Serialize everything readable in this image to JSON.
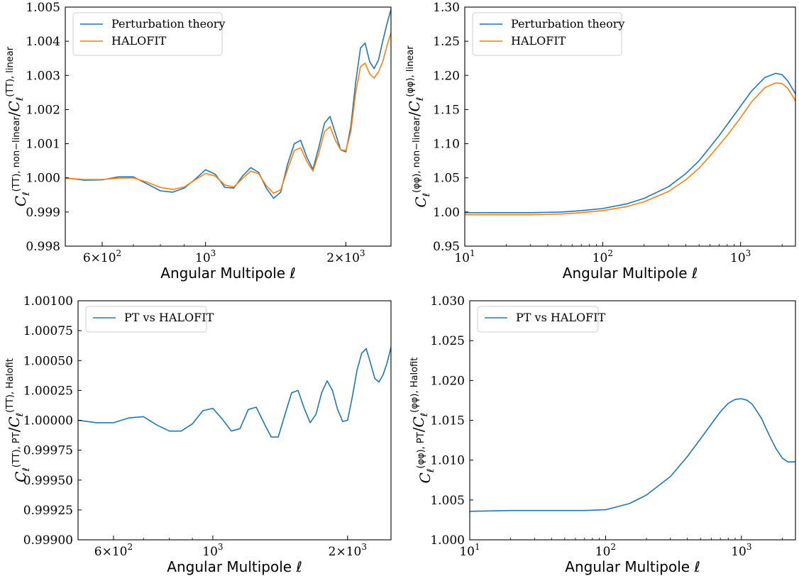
{
  "colors": {
    "blue": "#1f77b4",
    "orange": "#ff7f0e"
  },
  "chart_data": [
    {
      "type": "line",
      "xscale": "log",
      "xlim": [
        500,
        2500
      ],
      "ylim": [
        0.998,
        1.005
      ],
      "xlabel": "Angular  Multipole  ℓ",
      "ylabel": "C_ℓ^(TT), non−linear / C_ℓ^(TT), linear",
      "yticks": [
        "0.998",
        "0.999",
        "1.000",
        "1.001",
        "1.002",
        "1.003",
        "1.004",
        "1.005"
      ],
      "xticks": [
        {
          "value": 600,
          "label": "6×10²"
        },
        {
          "value": 1000,
          "label": "10³"
        },
        {
          "value": 2000,
          "label": "2×10³"
        }
      ],
      "legend_position": "top-left",
      "series": [
        {
          "name": "Perturbation theory",
          "color": "#1f77b4",
          "x": [
            500,
            550,
            600,
            650,
            700,
            750,
            800,
            850,
            900,
            950,
            1000,
            1050,
            1100,
            1150,
            1200,
            1250,
            1300,
            1350,
            1400,
            1450,
            1500,
            1550,
            1600,
            1650,
            1700,
            1750,
            1800,
            1850,
            1900,
            1950,
            2000,
            2050,
            2100,
            2150,
            2200,
            2250,
            2300,
            2350,
            2400,
            2450,
            2500
          ],
          "y": [
            1.0,
            0.99993,
            0.99994,
            1.00003,
            1.00003,
            0.99982,
            0.99962,
            0.99958,
            0.9997,
            0.99996,
            1.00024,
            1.0001,
            0.99972,
            0.9997,
            1.00005,
            1.0003,
            1.00016,
            0.9997,
            0.9994,
            0.99958,
            1.0004,
            1.001,
            1.0011,
            1.0006,
            1.00025,
            1.0009,
            1.0016,
            1.0018,
            1.0013,
            1.00082,
            1.00076,
            1.0015,
            1.0028,
            1.0038,
            1.00395,
            1.0034,
            1.0032,
            1.00345,
            1.004,
            1.0045,
            1.00493
          ]
        },
        {
          "name": "HALOFIT",
          "color": "#ff7f0e",
          "x": [
            500,
            550,
            600,
            650,
            700,
            750,
            800,
            850,
            900,
            950,
            1000,
            1050,
            1100,
            1150,
            1200,
            1250,
            1300,
            1350,
            1400,
            1450,
            1500,
            1550,
            1600,
            1650,
            1700,
            1750,
            1800,
            1850,
            1900,
            1950,
            2000,
            2050,
            2100,
            2150,
            2200,
            2250,
            2300,
            2350,
            2400,
            2450,
            2500
          ],
          "y": [
            0.99999,
            0.99995,
            0.99995,
            0.99999,
            1.0,
            0.99987,
            0.99972,
            0.99966,
            0.99973,
            0.99994,
            1.00013,
            1.00005,
            0.99979,
            0.99973,
            0.99998,
            1.0002,
            1.00012,
            0.99977,
            0.99955,
            0.99965,
            1.00025,
            1.0008,
            1.00088,
            1.00048,
            1.0002,
            1.00072,
            1.00135,
            1.0015,
            1.0011,
            1.00082,
            1.0008,
            1.00135,
            1.0025,
            1.00325,
            1.00336,
            1.00305,
            1.00292,
            1.0031,
            1.0034,
            1.00385,
            1.00425
          ]
        }
      ]
    },
    {
      "type": "line",
      "xscale": "log",
      "xlim": [
        10,
        2500
      ],
      "ylim": [
        0.95,
        1.3
      ],
      "xlabel": "Angular  Multipole  ℓ",
      "ylabel": "C_ℓ^(φφ), non−linear / C_ℓ^(φφ), linear",
      "yticks": [
        "0.95",
        "1.00",
        "1.05",
        "1.10",
        "1.15",
        "1.20",
        "1.25",
        "1.30"
      ],
      "xticks": [
        {
          "value": 10,
          "label": "10¹"
        },
        {
          "value": 100,
          "label": "10²"
        },
        {
          "value": 1000,
          "label": "10³"
        }
      ],
      "legend_position": "top-left",
      "series": [
        {
          "name": "Perturbation theory",
          "color": "#1f77b4",
          "x": [
            10,
            20,
            30,
            50,
            70,
            100,
            150,
            200,
            300,
            400,
            500,
            600,
            700,
            800,
            1000,
            1200,
            1500,
            1800,
            2000,
            2200,
            2500
          ],
          "y": [
            0.999,
            0.999,
            0.999,
            1.0,
            1.002,
            1.005,
            1.012,
            1.02,
            1.037,
            1.056,
            1.075,
            1.095,
            1.112,
            1.128,
            1.155,
            1.177,
            1.197,
            1.203,
            1.201,
            1.192,
            1.173
          ]
        },
        {
          "name": "HALOFIT",
          "color": "#ff7f0e",
          "x": [
            10,
            20,
            30,
            50,
            70,
            100,
            150,
            200,
            300,
            400,
            500,
            600,
            700,
            800,
            1000,
            1200,
            1500,
            1800,
            2000,
            2200,
            2500
          ],
          "y": [
            0.996,
            0.996,
            0.996,
            0.997,
            0.999,
            1.002,
            1.008,
            1.015,
            1.03,
            1.047,
            1.064,
            1.082,
            1.098,
            1.112,
            1.138,
            1.161,
            1.182,
            1.189,
            1.188,
            1.181,
            1.163
          ]
        }
      ]
    },
    {
      "type": "line",
      "xscale": "log",
      "xlim": [
        500,
        2500
      ],
      "ylim": [
        0.999,
        1.001
      ],
      "xlabel": "Angular  Multipole  ℓ",
      "ylabel": "C_ℓ^(TT), PT / C_ℓ^(TT), Halofit",
      "yticks": [
        "0.99900",
        "0.99925",
        "0.99950",
        "0.99975",
        "1.00000",
        "1.00025",
        "1.00050",
        "1.00075",
        "1.00100"
      ],
      "xticks": [
        {
          "value": 600,
          "label": "6×10²"
        },
        {
          "value": 1000,
          "label": "10³"
        },
        {
          "value": 2000,
          "label": "2×10³"
        }
      ],
      "legend_position": "top-left",
      "series": [
        {
          "name": "PT vs HALOFIT",
          "color": "#1f77b4",
          "x": [
            500,
            550,
            600,
            650,
            700,
            750,
            800,
            850,
            900,
            950,
            1000,
            1050,
            1100,
            1150,
            1200,
            1250,
            1300,
            1350,
            1400,
            1450,
            1500,
            1550,
            1600,
            1650,
            1700,
            1750,
            1800,
            1850,
            1900,
            1950,
            2000,
            2050,
            2100,
            2150,
            2200,
            2250,
            2300,
            2350,
            2400,
            2450,
            2500
          ],
          "y": [
            1.0,
            0.99998,
            0.99998,
            1.00002,
            1.00003,
            0.99996,
            0.99991,
            0.99991,
            0.99997,
            1.00008,
            1.0001,
            1.00001,
            0.99991,
            0.99993,
            1.00009,
            1.00011,
            0.99998,
            0.99986,
            0.99986,
            1.00005,
            1.00023,
            1.00025,
            1.0001,
            0.99998,
            1.00005,
            1.00023,
            1.00033,
            1.00025,
            1.00009,
            0.99999,
            1.0,
            1.0002,
            1.00042,
            1.00056,
            1.0006,
            1.00048,
            1.00035,
            1.00032,
            1.00038,
            1.00048,
            1.00061
          ]
        }
      ]
    },
    {
      "type": "line",
      "xscale": "log",
      "xlim": [
        10,
        2500
      ],
      "ylim": [
        0.999,
        1.03
      ],
      "xlabel": "Angular  Multipole  ℓ",
      "ylabel": "C_ℓ^(φφ), PT / C_ℓ^(φφ), Halofit",
      "yticks": [
        "1.000",
        "1.005",
        "1.010",
        "1.015",
        "1.020",
        "1.025",
        "1.030"
      ],
      "xticks": [
        {
          "value": 10,
          "label": "10¹"
        },
        {
          "value": 100,
          "label": "10²"
        },
        {
          "value": 1000,
          "label": "10³"
        }
      ],
      "legend_position": "top-left",
      "series": [
        {
          "name": "PT vs HALOFIT",
          "color": "#1f77b4",
          "x": [
            10,
            20,
            30,
            50,
            70,
            100,
            150,
            200,
            300,
            400,
            500,
            600,
            700,
            800,
            900,
            1000,
            1100,
            1200,
            1400,
            1600,
            1800,
            2000,
            2200,
            2500
          ],
          "y": [
            1.0027,
            1.0028,
            1.0028,
            1.0028,
            1.0028,
            1.0029,
            1.0037,
            1.0048,
            1.0072,
            1.0098,
            1.0121,
            1.014,
            1.0156,
            1.0167,
            1.0172,
            1.0173,
            1.0171,
            1.0166,
            1.0148,
            1.0126,
            1.0108,
            1.0096,
            1.0091,
            1.0091
          ]
        }
      ]
    }
  ]
}
